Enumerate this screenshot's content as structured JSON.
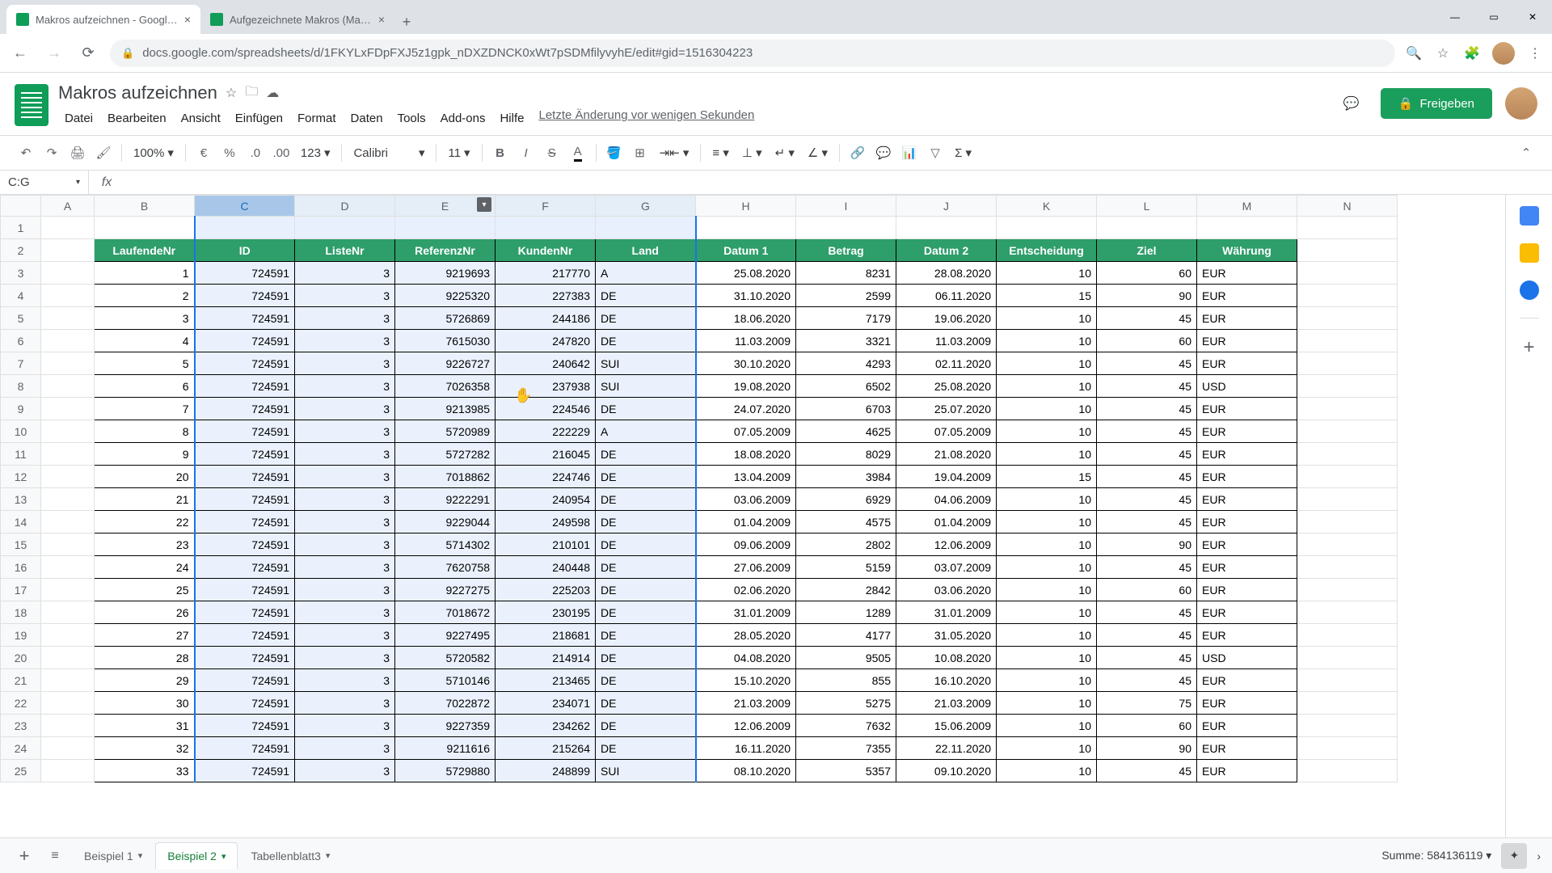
{
  "browser": {
    "tabs": [
      {
        "title": "Makros aufzeichnen - Google Ta",
        "active": true
      },
      {
        "title": "Aufgezeichnete Makros (Makro",
        "active": false
      }
    ],
    "url": "docs.google.com/spreadsheets/d/1FKYLxFDpFXJ5z1gpk_nDXZDNCK0xWt7pSDMfilyvyhE/edit#gid=1516304223"
  },
  "doc": {
    "title": "Makros aufzeichnen",
    "menus": [
      "Datei",
      "Bearbeiten",
      "Ansicht",
      "Einfügen",
      "Format",
      "Daten",
      "Tools",
      "Add-ons",
      "Hilfe"
    ],
    "last_edit": "Letzte Änderung vor wenigen Sekunden",
    "share_label": "Freigeben"
  },
  "toolbar": {
    "zoom": "100%",
    "font": "Calibri",
    "font_size": "11",
    "number_format": "123"
  },
  "name_box": "C:G",
  "columns": {
    "letters": [
      "A",
      "B",
      "C",
      "D",
      "E",
      "F",
      "G",
      "H",
      "I",
      "J",
      "K",
      "L",
      "M",
      "N"
    ],
    "widths": [
      66,
      124,
      124,
      124,
      124,
      124,
      124,
      124,
      124,
      124,
      124,
      124,
      124,
      124
    ],
    "selected_primary": "C",
    "selected_range_start": "C",
    "selected_range_end": "G",
    "dropdown_on": "E"
  },
  "headers": [
    "LaufendeNr",
    "ID",
    "ListeNr",
    "ReferenzNr",
    "KundenNr",
    "Land",
    "Datum 1",
    "Betrag",
    "Datum 2",
    "Entscheidung",
    "Ziel",
    "Währung"
  ],
  "header_bg": "#2e9e6b",
  "data": [
    [
      1,
      724591,
      3,
      9219693,
      217770,
      "A",
      "25.08.2020",
      8231,
      "28.08.2020",
      10,
      60,
      "EUR"
    ],
    [
      2,
      724591,
      3,
      9225320,
      227383,
      "DE",
      "31.10.2020",
      2599,
      "06.11.2020",
      15,
      90,
      "EUR"
    ],
    [
      3,
      724591,
      3,
      5726869,
      244186,
      "DE",
      "18.06.2020",
      7179,
      "19.06.2020",
      10,
      45,
      "EUR"
    ],
    [
      4,
      724591,
      3,
      7615030,
      247820,
      "DE",
      "11.03.2009",
      3321,
      "11.03.2009",
      10,
      60,
      "EUR"
    ],
    [
      5,
      724591,
      3,
      9226727,
      240642,
      "SUI",
      "30.10.2020",
      4293,
      "02.11.2020",
      10,
      45,
      "EUR"
    ],
    [
      6,
      724591,
      3,
      7026358,
      237938,
      "SUI",
      "19.08.2020",
      6502,
      "25.08.2020",
      10,
      45,
      "USD"
    ],
    [
      7,
      724591,
      3,
      9213985,
      224546,
      "DE",
      "24.07.2020",
      6703,
      "25.07.2020",
      10,
      45,
      "EUR"
    ],
    [
      8,
      724591,
      3,
      5720989,
      222229,
      "A",
      "07.05.2009",
      4625,
      "07.05.2009",
      10,
      45,
      "EUR"
    ],
    [
      9,
      724591,
      3,
      5727282,
      216045,
      "DE",
      "18.08.2020",
      8029,
      "21.08.2020",
      10,
      45,
      "EUR"
    ],
    [
      20,
      724591,
      3,
      7018862,
      224746,
      "DE",
      "13.04.2009",
      3984,
      "19.04.2009",
      15,
      45,
      "EUR"
    ],
    [
      21,
      724591,
      3,
      9222291,
      240954,
      "DE",
      "03.06.2009",
      6929,
      "04.06.2009",
      10,
      45,
      "EUR"
    ],
    [
      22,
      724591,
      3,
      9229044,
      249598,
      "DE",
      "01.04.2009",
      4575,
      "01.04.2009",
      10,
      45,
      "EUR"
    ],
    [
      23,
      724591,
      3,
      5714302,
      210101,
      "DE",
      "09.06.2009",
      2802,
      "12.06.2009",
      10,
      90,
      "EUR"
    ],
    [
      24,
      724591,
      3,
      7620758,
      240448,
      "DE",
      "27.06.2009",
      5159,
      "03.07.2009",
      10,
      45,
      "EUR"
    ],
    [
      25,
      724591,
      3,
      9227275,
      225203,
      "DE",
      "02.06.2020",
      2842,
      "03.06.2020",
      10,
      60,
      "EUR"
    ],
    [
      26,
      724591,
      3,
      7018672,
      230195,
      "DE",
      "31.01.2009",
      1289,
      "31.01.2009",
      10,
      45,
      "EUR"
    ],
    [
      27,
      724591,
      3,
      9227495,
      218681,
      "DE",
      "28.05.2020",
      4177,
      "31.05.2020",
      10,
      45,
      "EUR"
    ],
    [
      28,
      724591,
      3,
      5720582,
      214914,
      "DE",
      "04.08.2020",
      9505,
      "10.08.2020",
      10,
      45,
      "USD"
    ],
    [
      29,
      724591,
      3,
      5710146,
      213465,
      "DE",
      "15.10.2020",
      855,
      "16.10.2020",
      10,
      45,
      "EUR"
    ],
    [
      30,
      724591,
      3,
      7022872,
      234071,
      "DE",
      "21.03.2009",
      5275,
      "21.03.2009",
      10,
      75,
      "EUR"
    ],
    [
      31,
      724591,
      3,
      9227359,
      234262,
      "DE",
      "12.06.2009",
      7632,
      "15.06.2009",
      10,
      60,
      "EUR"
    ],
    [
      32,
      724591,
      3,
      9211616,
      215264,
      "DE",
      "16.11.2020",
      7355,
      "22.11.2020",
      10,
      90,
      "EUR"
    ],
    [
      33,
      724591,
      3,
      5729880,
      248899,
      "SUI",
      "08.10.2020",
      5357,
      "09.10.2020",
      10,
      45,
      "EUR"
    ]
  ],
  "col_types": [
    "num",
    "num",
    "num",
    "num",
    "num",
    "txt",
    "num",
    "num",
    "num",
    "num",
    "num",
    "txt"
  ],
  "sheets": {
    "list": [
      "Beispiel 1",
      "Beispiel 2",
      "Tabellenblatt3"
    ],
    "active": 1
  },
  "status": {
    "sum_label": "Summe:",
    "sum_value": "584136119"
  }
}
